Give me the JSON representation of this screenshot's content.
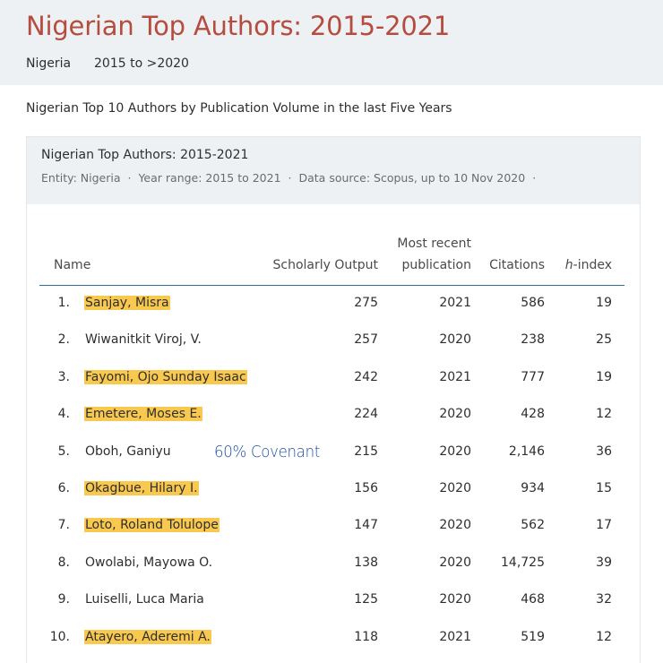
{
  "header": {
    "title": "Nigerian Top Authors: 2015-2021",
    "country": "Nigeria",
    "year_range": "2015 to >2020"
  },
  "section_heading": "Nigerian Top 10 Authors by Publication Volume in the last Five Years",
  "card": {
    "title": "Nigerian Top Authors: 2015-2021",
    "meta": {
      "entity": "Entity: Nigeria",
      "sep1": "·",
      "year_range": "Year range: 2015 to 2021",
      "sep2": "·",
      "source": "Data source: Scopus, up to 10 Nov 2020",
      "sep3": "·"
    }
  },
  "table": {
    "columns": {
      "name": "Name",
      "output": "Scholarly Output",
      "recent_line1": "Most recent",
      "recent_line2": "publication",
      "citations": "Citations",
      "h_prefix": "h",
      "h_suffix": "-index"
    },
    "rows": [
      {
        "rank": "1.",
        "name": "Sanjay, Misra",
        "highlighted": true,
        "output": "275",
        "recent": "2021",
        "citations": "586",
        "h": "19"
      },
      {
        "rank": "2.",
        "name": "Wiwanitkit Viroj, V.",
        "highlighted": false,
        "output": "257",
        "recent": "2020",
        "citations": "238",
        "h": "25"
      },
      {
        "rank": "3.",
        "name": "Fayomi, Ojo Sunday Isaac",
        "highlighted": true,
        "output": "242",
        "recent": "2021",
        "citations": "777",
        "h": "19"
      },
      {
        "rank": "4.",
        "name": "Emetere, Moses E.",
        "highlighted": true,
        "output": "224",
        "recent": "2020",
        "citations": "428",
        "h": "12"
      },
      {
        "rank": "5.",
        "name": "Oboh, Ganiyu",
        "highlighted": false,
        "output": "215",
        "recent": "2020",
        "citations": "2,146",
        "h": "36"
      },
      {
        "rank": "6.",
        "name": "Okagbue, Hilary I.",
        "highlighted": true,
        "output": "156",
        "recent": "2020",
        "citations": "934",
        "h": "15"
      },
      {
        "rank": "7.",
        "name": "Loto, Roland Tolulope",
        "highlighted": true,
        "output": "147",
        "recent": "2020",
        "citations": "562",
        "h": "17"
      },
      {
        "rank": "8.",
        "name": "Owolabi, Mayowa O.",
        "highlighted": false,
        "output": "138",
        "recent": "2020",
        "citations": "14,725",
        "h": "39"
      },
      {
        "rank": "9.",
        "name": "Luiselli, Luca Maria",
        "highlighted": false,
        "output": "125",
        "recent": "2020",
        "citations": "468",
        "h": "32"
      },
      {
        "rank": "10.",
        "name": "Atayero, Aderemi A.",
        "highlighted": true,
        "output": "118",
        "recent": "2021",
        "citations": "519",
        "h": "12"
      }
    ]
  },
  "annotation": "60% Covenant",
  "colors": {
    "title": "#b64c3e",
    "highlight": "#f9c94f",
    "annotation": "#1d4fa0",
    "header_rule": "#2e6f96",
    "header_bg": "#eef1f4"
  }
}
